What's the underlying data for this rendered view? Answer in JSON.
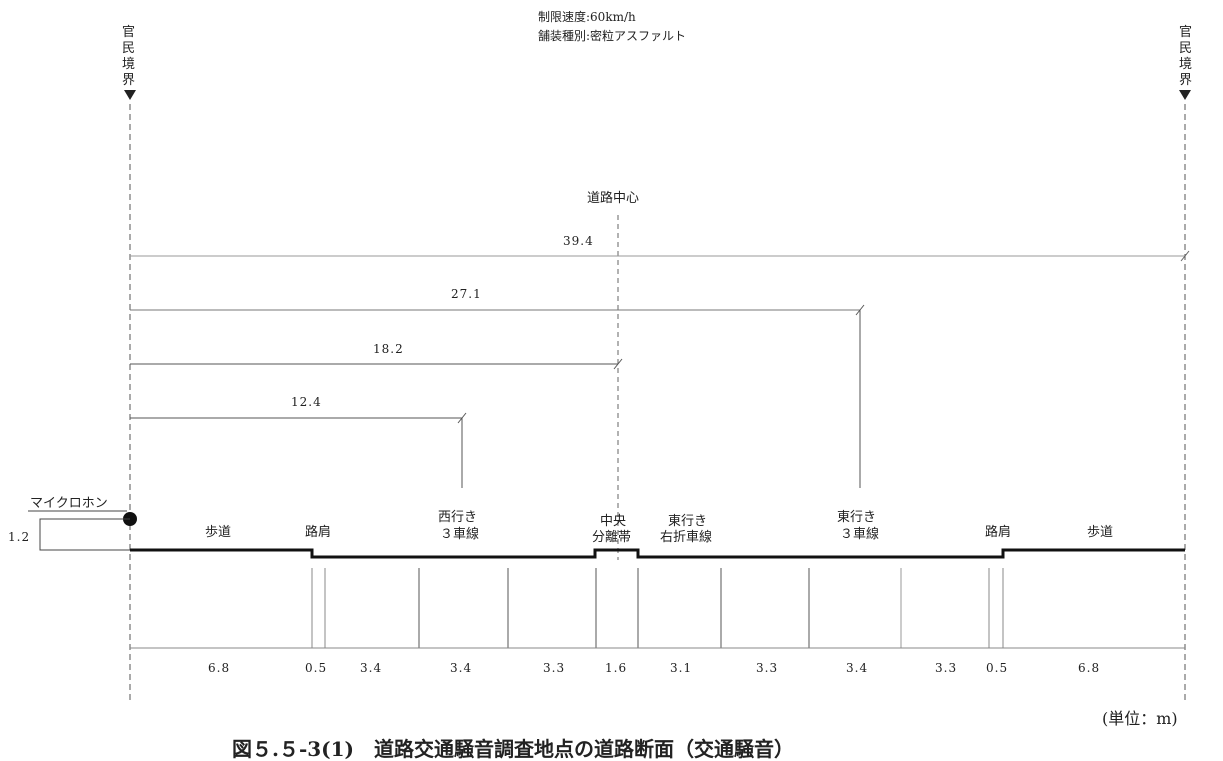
{
  "header": {
    "speed_limit": "制限速度:60km/h",
    "pavement": "舗装種別:密粒アスファルト"
  },
  "boundary_label": "官民境界",
  "road_center_label": "道路中心",
  "microphone": {
    "label": "マイクロホン",
    "height": "1.2"
  },
  "distances": [
    {
      "label": "39.4",
      "value": 39.4
    },
    {
      "label": "27.1",
      "value": 27.1
    },
    {
      "label": "18.2",
      "value": 18.2
    },
    {
      "label": "12.4",
      "value": 12.4
    }
  ],
  "zone_labels": {
    "left_sidewalk": "歩道",
    "left_shoulder": "路肩",
    "west_lanes": [
      "西行き",
      "３車線"
    ],
    "median": [
      "中央",
      "分離帯"
    ],
    "east_right_turn": [
      "東行き",
      "右折車線"
    ],
    "east_lanes": [
      "東行き",
      "３車線"
    ],
    "right_shoulder": "路肩",
    "right_sidewalk": "歩道"
  },
  "widths": [
    "6.8",
    "0.5",
    "3.4",
    "3.4",
    "3.3",
    "1.6",
    "3.1",
    "3.3",
    "3.4",
    "3.3",
    "0.5",
    "6.8"
  ],
  "unit_label": "(単位：m)",
  "caption": "図５.５-3(1)　道路交通騒音調査地点の道路断面（交通騒音）"
}
